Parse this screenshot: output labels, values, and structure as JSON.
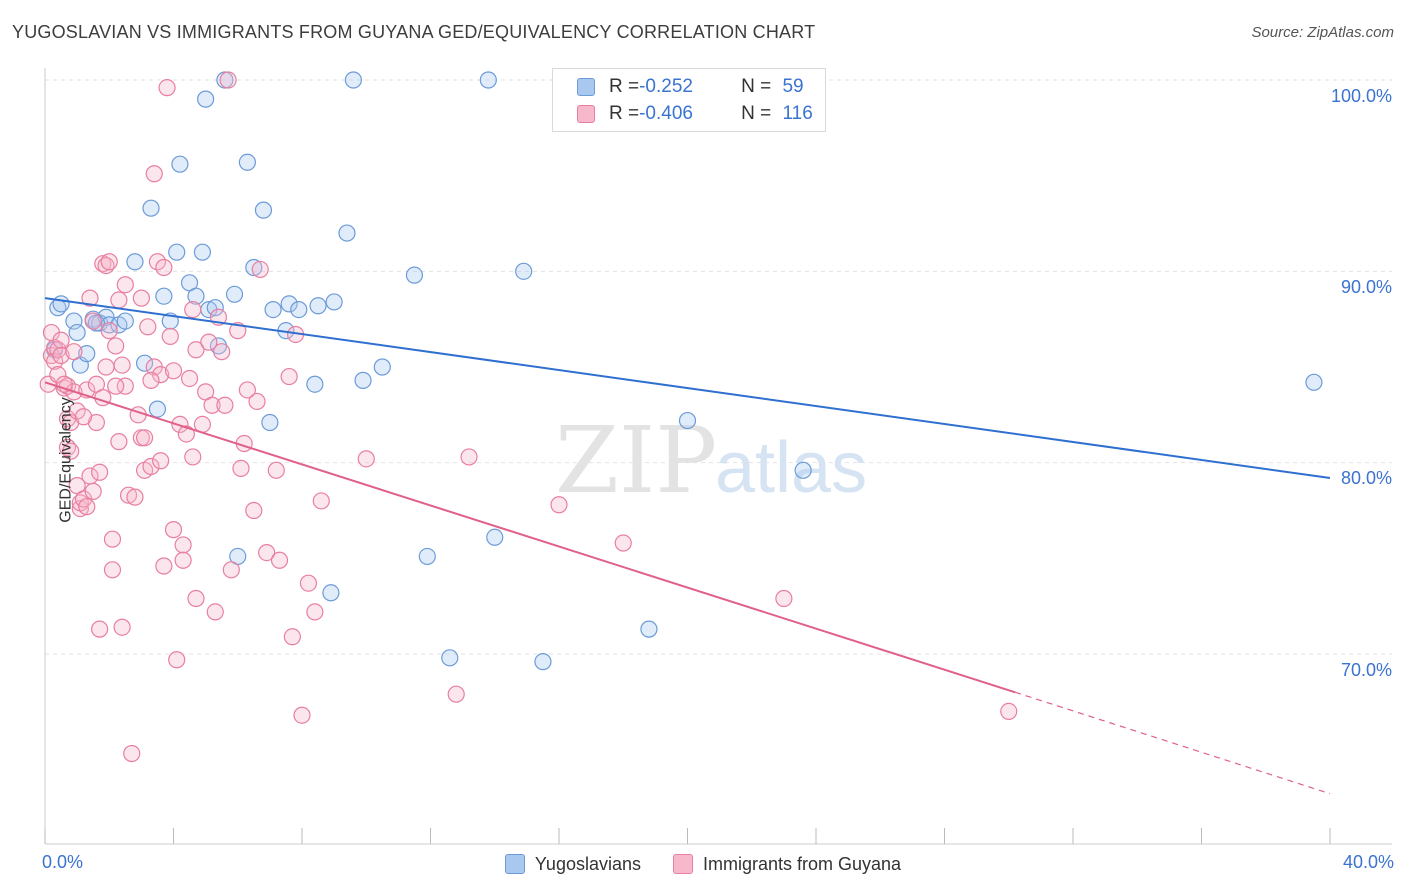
{
  "title": "YUGOSLAVIAN VS IMMIGRANTS FROM GUYANA GED/EQUIVALENCY CORRELATION CHART",
  "source": "Source: ZipAtlas.com",
  "watermark": {
    "zip": "ZIP",
    "atlas": "atlas"
  },
  "legend": {
    "rows": [
      {
        "r_label": "R = ",
        "r_value": "-0.252",
        "n_label": "N = ",
        "n_value": "59",
        "color": "#a8c8f0",
        "border": "#6c9bd8"
      },
      {
        "r_label": "R = ",
        "r_value": "-0.406",
        "n_label": "N = ",
        "n_value": "116",
        "color": "#f7b8cc",
        "border": "#e87fa0"
      }
    ]
  },
  "axis": {
    "ylabel": "GED/Equivalency",
    "x_min_label": "0.0%",
    "x_max_label": "40.0%",
    "y_ticks": [
      "100.0%",
      "90.0%",
      "80.0%",
      "70.0%"
    ]
  },
  "bottom_legend": [
    {
      "label": "Yugoslavians",
      "color": "#a8c8f0",
      "border": "#6c9bd8"
    },
    {
      "label": "Immigrants from Guyana",
      "color": "#f7b8cc",
      "border": "#e87fa0"
    }
  ],
  "chart_data": {
    "type": "scatter",
    "title": "YUGOSLAVIAN VS IMMIGRANTS FROM GUYANA GED/EQUIVALENCY CORRELATION CHART",
    "xlabel": "",
    "ylabel": "GED/Equivalency",
    "xlim": [
      0,
      40
    ],
    "ylim": [
      62,
      101
    ],
    "grid": true,
    "legend_position": "top-center",
    "series": [
      {
        "name": "Yugoslavians",
        "color": "#6c9bd8",
        "fill": "#a8c8f0",
        "trend_color": "#2f6fd0",
        "trend": {
          "x": [
            0,
            40
          ],
          "y": [
            88.6,
            79.2
          ]
        },
        "points": [
          [
            0.4,
            88.1
          ],
          [
            0.5,
            88.3
          ],
          [
            0.9,
            87.4
          ],
          [
            1.0,
            86.8
          ],
          [
            1.1,
            85.1
          ],
          [
            1.3,
            85.7
          ],
          [
            1.5,
            87.5
          ],
          [
            1.7,
            87.3
          ],
          [
            1.9,
            87.6
          ],
          [
            2.0,
            87.2
          ],
          [
            2.3,
            87.2
          ],
          [
            2.8,
            90.5
          ],
          [
            3.1,
            85.2
          ],
          [
            3.3,
            93.3
          ],
          [
            3.5,
            82.8
          ],
          [
            3.7,
            88.7
          ],
          [
            3.9,
            87.4
          ],
          [
            4.1,
            91.0
          ],
          [
            4.2,
            95.6
          ],
          [
            4.5,
            89.4
          ],
          [
            4.7,
            88.7
          ],
          [
            4.9,
            91.0
          ],
          [
            5.1,
            88.0
          ],
          [
            5.3,
            88.1
          ],
          [
            5.4,
            86.1
          ],
          [
            5.6,
            100.0
          ],
          [
            5.9,
            88.8
          ],
          [
            6.0,
            75.1
          ],
          [
            6.3,
            95.7
          ],
          [
            6.5,
            90.2
          ],
          [
            6.8,
            93.2
          ],
          [
            7.0,
            82.1
          ],
          [
            7.1,
            88.0
          ],
          [
            7.5,
            86.9
          ],
          [
            7.6,
            88.3
          ],
          [
            7.9,
            88.0
          ],
          [
            8.4,
            84.1
          ],
          [
            8.5,
            88.2
          ],
          [
            8.9,
            73.2
          ],
          [
            9.0,
            88.4
          ],
          [
            9.4,
            92.0
          ],
          [
            9.6,
            100.0
          ],
          [
            9.9,
            84.3
          ],
          [
            10.5,
            85.0
          ],
          [
            11.5,
            89.8
          ],
          [
            11.9,
            75.1
          ],
          [
            12.6,
            69.8
          ],
          [
            13.8,
            100.0
          ],
          [
            14.0,
            76.1
          ],
          [
            14.9,
            90.0
          ],
          [
            15.5,
            69.6
          ],
          [
            18.8,
            71.3
          ],
          [
            20.0,
            82.2
          ],
          [
            23.6,
            79.6
          ],
          [
            39.5,
            84.2
          ],
          [
            0.3,
            85.9
          ],
          [
            1.6,
            87.3
          ],
          [
            2.5,
            87.4
          ],
          [
            5.0,
            99.0
          ]
        ]
      },
      {
        "name": "Immigrants from Guyana",
        "color": "#e87fa0",
        "fill": "#f7b8cc",
        "trend_color": "#e0608a",
        "trend": {
          "x": [
            0,
            30.2
          ],
          "y": [
            84.2,
            68.0
          ]
        },
        "trend_dashed": {
          "x": [
            30.2,
            40
          ],
          "y": [
            68.0,
            62.7
          ]
        },
        "points": [
          [
            0.1,
            84.1
          ],
          [
            0.2,
            86.8
          ],
          [
            0.2,
            85.6
          ],
          [
            0.3,
            86.0
          ],
          [
            0.3,
            85.3
          ],
          [
            0.4,
            85.9
          ],
          [
            0.4,
            84.6
          ],
          [
            0.5,
            86.4
          ],
          [
            0.5,
            85.6
          ],
          [
            0.6,
            83.9
          ],
          [
            0.7,
            84.0
          ],
          [
            0.7,
            82.3
          ],
          [
            0.7,
            80.8
          ],
          [
            0.8,
            82.1
          ],
          [
            0.8,
            80.6
          ],
          [
            0.9,
            83.7
          ],
          [
            0.9,
            85.8
          ],
          [
            1.0,
            78.8
          ],
          [
            1.0,
            82.7
          ],
          [
            1.1,
            77.6
          ],
          [
            1.1,
            77.9
          ],
          [
            1.2,
            78.1
          ],
          [
            1.3,
            77.7
          ],
          [
            1.3,
            83.8
          ],
          [
            1.4,
            88.6
          ],
          [
            1.4,
            79.3
          ],
          [
            1.5,
            78.5
          ],
          [
            1.5,
            87.4
          ],
          [
            1.6,
            84.1
          ],
          [
            1.6,
            82.1
          ],
          [
            1.7,
            79.5
          ],
          [
            1.7,
            71.3
          ],
          [
            1.8,
            90.4
          ],
          [
            1.8,
            83.4
          ],
          [
            1.9,
            90.3
          ],
          [
            1.9,
            85.0
          ],
          [
            2.0,
            90.5
          ],
          [
            2.0,
            86.9
          ],
          [
            2.1,
            74.4
          ],
          [
            2.1,
            76.0
          ],
          [
            2.2,
            86.1
          ],
          [
            2.3,
            81.1
          ],
          [
            2.3,
            88.5
          ],
          [
            2.4,
            71.4
          ],
          [
            2.4,
            85.1
          ],
          [
            2.5,
            89.3
          ],
          [
            2.5,
            84.0
          ],
          [
            2.6,
            78.3
          ],
          [
            2.7,
            64.8
          ],
          [
            2.8,
            78.2
          ],
          [
            2.9,
            82.5
          ],
          [
            3.0,
            81.3
          ],
          [
            3.0,
            88.6
          ],
          [
            3.1,
            79.6
          ],
          [
            3.1,
            81.3
          ],
          [
            3.2,
            87.1
          ],
          [
            3.3,
            79.8
          ],
          [
            3.4,
            95.1
          ],
          [
            3.4,
            85.0
          ],
          [
            3.5,
            90.5
          ],
          [
            3.6,
            80.1
          ],
          [
            3.6,
            84.6
          ],
          [
            3.7,
            74.6
          ],
          [
            3.7,
            90.2
          ],
          [
            3.8,
            99.6
          ],
          [
            3.9,
            86.6
          ],
          [
            4.0,
            76.5
          ],
          [
            4.0,
            84.8
          ],
          [
            4.1,
            69.7
          ],
          [
            4.2,
            82.0
          ],
          [
            4.3,
            75.7
          ],
          [
            4.3,
            74.9
          ],
          [
            4.4,
            81.5
          ],
          [
            4.5,
            84.4
          ],
          [
            4.6,
            88.0
          ],
          [
            4.7,
            72.9
          ],
          [
            4.7,
            85.9
          ],
          [
            4.9,
            82.0
          ],
          [
            5.0,
            83.7
          ],
          [
            5.1,
            86.3
          ],
          [
            5.2,
            83.0
          ],
          [
            5.3,
            72.2
          ],
          [
            5.4,
            87.6
          ],
          [
            5.5,
            85.8
          ],
          [
            5.6,
            83.0
          ],
          [
            5.7,
            100.0
          ],
          [
            5.8,
            74.4
          ],
          [
            6.0,
            86.9
          ],
          [
            6.1,
            79.7
          ],
          [
            6.2,
            81.0
          ],
          [
            6.5,
            77.5
          ],
          [
            6.6,
            83.2
          ],
          [
            6.7,
            90.1
          ],
          [
            6.9,
            75.3
          ],
          [
            7.2,
            79.6
          ],
          [
            7.3,
            74.9
          ],
          [
            7.6,
            84.5
          ],
          [
            7.7,
            70.9
          ],
          [
            7.8,
            86.7
          ],
          [
            8.0,
            66.8
          ],
          [
            8.2,
            73.7
          ],
          [
            8.4,
            72.2
          ],
          [
            8.6,
            78.0
          ],
          [
            10.0,
            80.2
          ],
          [
            12.8,
            67.9
          ],
          [
            13.2,
            80.3
          ],
          [
            16.0,
            77.8
          ],
          [
            18.0,
            75.8
          ],
          [
            23.0,
            72.9
          ],
          [
            30.0,
            67.0
          ],
          [
            0.6,
            84.1
          ],
          [
            1.2,
            82.4
          ],
          [
            2.2,
            84.0
          ],
          [
            3.3,
            84.3
          ],
          [
            4.6,
            80.3
          ],
          [
            6.3,
            83.8
          ]
        ]
      }
    ]
  }
}
